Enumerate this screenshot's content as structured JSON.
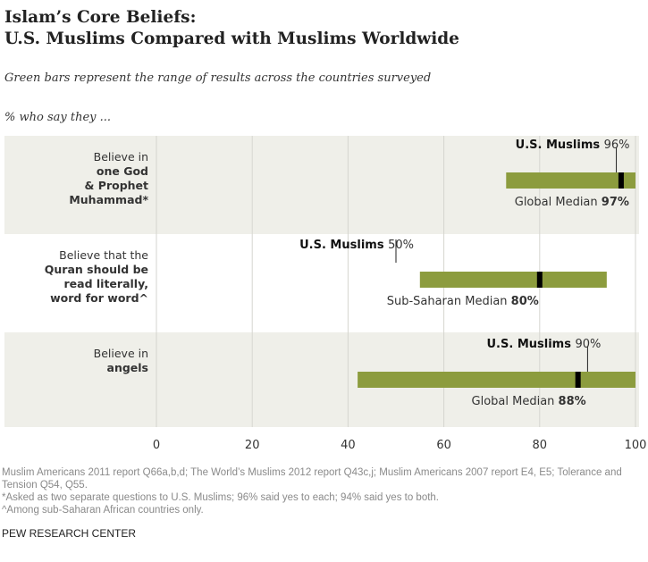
{
  "chart_data": {
    "type": "bar",
    "title": "Islam's Core Beliefs:\nU.S. Muslims Compared with Muslims Worldwide",
    "title_lines": [
      "Islam’s Core Beliefs:",
      "U.S. Muslims Compared with Muslims Worldwide"
    ],
    "subtitle": "Green bars represent the range of results across the countries surveyed",
    "unit_label": "% who say they ...",
    "xlim": [
      0,
      100
    ],
    "xticks": [
      0,
      20,
      40,
      60,
      80,
      100
    ],
    "grid": true,
    "colors": {
      "range_bar": "#8c9c3e",
      "median": "#000000",
      "band": "#efefe9"
    },
    "rows": [
      {
        "label_normal": "Believe in",
        "label_bold": [
          "one God",
          "& Prophet",
          "Muhammad*"
        ],
        "range": [
          73,
          100
        ],
        "median": 97,
        "median_label": "Global Median",
        "median_value": "97%",
        "us": 96,
        "us_label": "U.S. Muslims",
        "us_value": "96%"
      },
      {
        "label_normal": "Believe that the",
        "label_bold": [
          "Quran should be",
          "read literally,",
          "word for word^"
        ],
        "range": [
          55,
          94
        ],
        "median": 80,
        "median_label": "Sub-Saharan Median",
        "median_value": "80%",
        "us": 50,
        "us_label": "U.S. Muslims",
        "us_value": "50%"
      },
      {
        "label_normal": "Believe in",
        "label_bold": [
          "angels"
        ],
        "range": [
          42,
          100
        ],
        "median": 88,
        "median_label": "Global Median",
        "median_value": "88%",
        "us": 90,
        "us_label": "U.S. Muslims",
        "us_value": "90%"
      }
    ]
  },
  "notes": [
    "Muslim Americans 2011 report Q66a,b,d; The World’s Muslims 2012 report Q43c,j;  Muslim Americans 2007 report E4, E5; Tolerance and Tension Q54, Q55.",
    "*Asked as two separate questions to U.S. Muslims; 96% said yes to each; 94% said yes to both.",
    "^Among sub-Saharan African countries only."
  ],
  "source": "PEW RESEARCH  CENTER"
}
